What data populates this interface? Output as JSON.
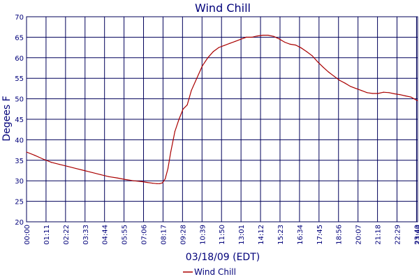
{
  "chart_data": {
    "type": "line",
    "title": "Wind Chill",
    "xlabel": "03/18/09 (EDT)",
    "ylabel": "Degees F",
    "ylim": [
      20,
      70
    ],
    "yticks": [
      20,
      25,
      30,
      35,
      40,
      45,
      50,
      55,
      60,
      65,
      70
    ],
    "xticks": [
      "00:00",
      "01:11",
      "02:22",
      "03:33",
      "04:44",
      "05:55",
      "07:06",
      "08:17",
      "09:28",
      "10:39",
      "11:50",
      "13:01",
      "14:12",
      "15:23",
      "16:34",
      "17:45",
      "18:56",
      "20:07",
      "21:18",
      "22:29",
      "23:40",
      "23:44"
    ],
    "grid": true,
    "legend": "bottom",
    "colors": {
      "line": "#aa0000",
      "grid": "#00005a",
      "text": "#00007a"
    },
    "series": [
      {
        "name": "Wind Chill",
        "x": [
          "00:00",
          "00:30",
          "01:00",
          "01:30",
          "02:00",
          "02:30",
          "03:00",
          "03:30",
          "04:00",
          "04:30",
          "05:00",
          "05:30",
          "06:00",
          "06:30",
          "07:00",
          "07:20",
          "07:40",
          "07:55",
          "08:05",
          "08:15",
          "08:25",
          "08:35",
          "08:45",
          "09:00",
          "09:15",
          "09:30",
          "09:45",
          "10:00",
          "10:20",
          "10:40",
          "11:00",
          "11:20",
          "11:40",
          "12:00",
          "12:20",
          "12:40",
          "13:00",
          "13:20",
          "13:40",
          "14:00",
          "14:20",
          "14:40",
          "15:00",
          "15:20",
          "15:40",
          "16:00",
          "16:20",
          "16:40",
          "17:00",
          "17:20",
          "17:40",
          "18:00",
          "18:20",
          "18:40",
          "19:00",
          "19:20",
          "19:40",
          "20:00",
          "20:20",
          "20:40",
          "21:00",
          "21:20",
          "21:40",
          "22:00",
          "22:20",
          "22:40",
          "23:00",
          "23:20",
          "23:44"
        ],
        "y": [
          37.0,
          36.2,
          35.3,
          34.5,
          34.0,
          33.5,
          33.0,
          32.5,
          32.0,
          31.5,
          31.0,
          30.7,
          30.3,
          30.0,
          29.8,
          29.6,
          29.4,
          29.3,
          29.3,
          29.5,
          30.5,
          33.0,
          37.0,
          42.0,
          45.0,
          47.5,
          48.5,
          52.0,
          55.0,
          58.0,
          60.0,
          61.5,
          62.5,
          63.0,
          63.5,
          64.0,
          64.5,
          65.0,
          65.0,
          65.3,
          65.5,
          65.5,
          65.2,
          64.6,
          63.8,
          63.3,
          63.1,
          62.4,
          61.5,
          60.5,
          59.0,
          57.7,
          56.5,
          55.5,
          54.5,
          53.8,
          53.0,
          52.5,
          52.0,
          51.5,
          51.3,
          51.3,
          51.6,
          51.5,
          51.2,
          51.0,
          50.7,
          50.4,
          49.5
        ]
      }
    ]
  }
}
